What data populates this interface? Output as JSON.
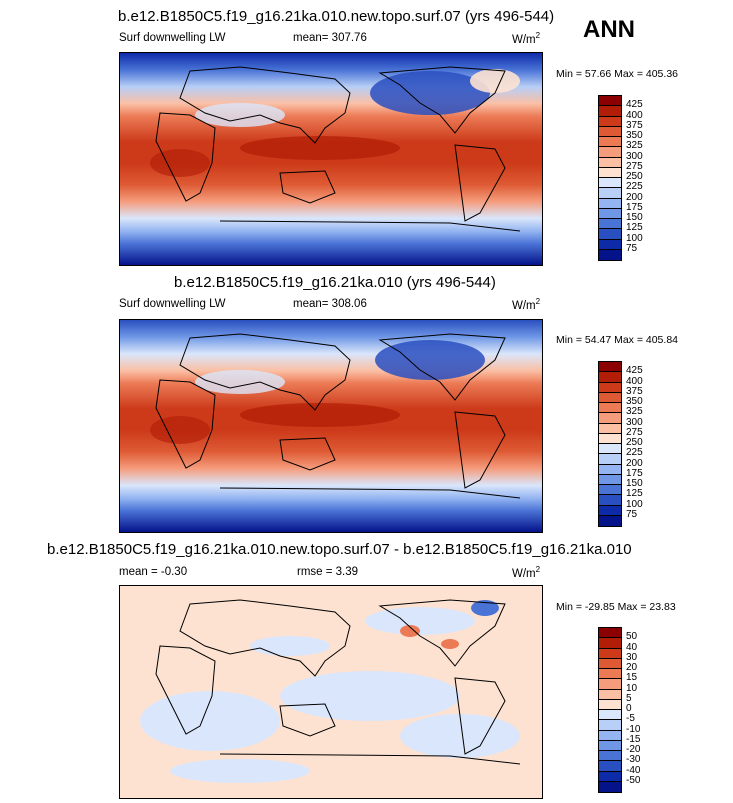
{
  "season": "ANN",
  "panels": [
    {
      "title": "b.e12.B1850C5.f19_g16.21ka.010.new.topo.surf.07 (yrs 496-544)",
      "left_label": "Surf downwelling LW",
      "middle_label": "mean= 307.76",
      "units_base": "W/m",
      "units_exp": "2",
      "minmax": "Min =  57.66 Max = 405.36",
      "levels": [
        "425",
        "400",
        "375",
        "350",
        "325",
        "300",
        "275",
        "250",
        "225",
        "200",
        "175",
        "150",
        "125",
        "100",
        "75"
      ],
      "colors": [
        "#8b0000",
        "#b11d06",
        "#cc3a1a",
        "#de5a34",
        "#ec7a55",
        "#f59c7c",
        "#fbbfa4",
        "#fde2d2",
        "#dae6fb",
        "#b8cff7",
        "#94b5f1",
        "#6f97e6",
        "#4a73d6",
        "#2a4fc0",
        "#0d2aa8",
        "#04138a"
      ]
    },
    {
      "title": "b.e12.B1850C5.f19_g16.21ka.010 (yrs 496-544)",
      "left_label": "Surf downwelling LW",
      "middle_label": "mean= 308.06",
      "units_base": "W/m",
      "units_exp": "2",
      "minmax": "Min =  54.47 Max = 405.84",
      "levels": [
        "425",
        "400",
        "375",
        "350",
        "325",
        "300",
        "275",
        "250",
        "225",
        "200",
        "175",
        "150",
        "125",
        "100",
        "75"
      ],
      "colors": [
        "#8b0000",
        "#b11d06",
        "#cc3a1a",
        "#de5a34",
        "#ec7a55",
        "#f59c7c",
        "#fbbfa4",
        "#fde2d2",
        "#dae6fb",
        "#b8cff7",
        "#94b5f1",
        "#6f97e6",
        "#4a73d6",
        "#2a4fc0",
        "#0d2aa8",
        "#04138a"
      ]
    },
    {
      "title": "b.e12.B1850C5.f19_g16.21ka.010.new.topo.surf.07 - b.e12.B1850C5.f19_g16.21ka.010",
      "left_label": "mean =  -0.30",
      "middle_label": "rmse =   3.39",
      "units_base": "W/m",
      "units_exp": "2",
      "minmax": "Min = -29.85 Max =  23.83",
      "levels": [
        "50",
        "40",
        "30",
        "20",
        "15",
        "10",
        "5",
        "0",
        "-5",
        "-10",
        "-15",
        "-20",
        "-30",
        "-40",
        "-50"
      ],
      "colors": [
        "#8b0000",
        "#b11d06",
        "#cc3a1a",
        "#de5a34",
        "#ec7a55",
        "#f59c7c",
        "#fbbfa4",
        "#fde2d2",
        "#dae6fb",
        "#b8cff7",
        "#94b5f1",
        "#6f97e6",
        "#4a73d6",
        "#2a4fc0",
        "#0d2aa8",
        "#04138a"
      ]
    }
  ],
  "chart_data": [
    {
      "type": "heatmap",
      "title": "b.e12.B1850C5.f19_g16.21ka.010.new.topo.surf.07 (yrs 496-544)",
      "variable": "Surf downwelling LW",
      "units": "W/m2",
      "mean": 307.76,
      "min": 57.66,
      "max": 405.36,
      "contour_levels": [
        75,
        100,
        125,
        150,
        175,
        200,
        225,
        250,
        275,
        300,
        325,
        350,
        375,
        400,
        425
      ]
    },
    {
      "type": "heatmap",
      "title": "b.e12.B1850C5.f19_g16.21ka.010 (yrs 496-544)",
      "variable": "Surf downwelling LW",
      "units": "W/m2",
      "mean": 308.06,
      "min": 54.47,
      "max": 405.84,
      "contour_levels": [
        75,
        100,
        125,
        150,
        175,
        200,
        225,
        250,
        275,
        300,
        325,
        350,
        375,
        400,
        425
      ]
    },
    {
      "type": "heatmap",
      "title": "b.e12.B1850C5.f19_g16.21ka.010.new.topo.surf.07 - b.e12.B1850C5.f19_g16.21ka.010",
      "units": "W/m2",
      "mean": -0.3,
      "rmse": 3.39,
      "min": -29.85,
      "max": 23.83,
      "contour_levels": [
        -50,
        -40,
        -30,
        -20,
        -15,
        -10,
        -5,
        0,
        5,
        10,
        15,
        20,
        30,
        40,
        50
      ]
    }
  ]
}
